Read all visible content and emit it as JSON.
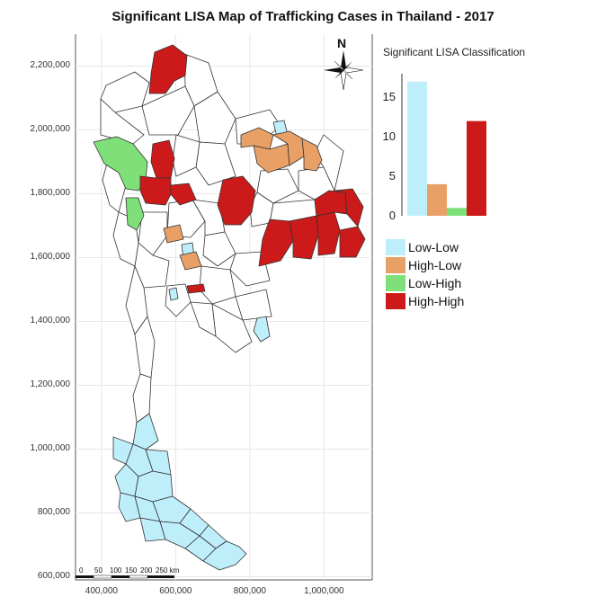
{
  "title": "Significant LISA Map of Trafficking Cases in Thailand - 2017",
  "north_label": "N",
  "scale_bar": {
    "labels": [
      "0",
      "50",
      "100",
      "150",
      "200",
      "250 km"
    ]
  },
  "colors": {
    "low_low": "#bfeefb",
    "high_low": "#e8a066",
    "low_high": "#7fe07a",
    "high_high": "#cc1a1a",
    "boundary": "#333333",
    "grid": "#e6e6e6"
  },
  "legend": [
    {
      "label": "Low-Low",
      "color": "#bfeefb"
    },
    {
      "label": "High-Low",
      "color": "#e8a066"
    },
    {
      "label": "Low-High",
      "color": "#7fe07a"
    },
    {
      "label": "High-High",
      "color": "#cc1a1a"
    }
  ],
  "chart_data": [
    {
      "type": "map",
      "title": "Significant LISA Map of Trafficking Cases in Thailand - 2017",
      "x_ticks": [
        "400,000",
        "600,000",
        "800,000",
        "1,000,000"
      ],
      "x_tick_values": [
        400000,
        600000,
        800000,
        1000000
      ],
      "y_ticks": [
        "600,000",
        "800,000",
        "1,000,000",
        "1,200,000",
        "1,400,000",
        "1,600,000",
        "1,800,000",
        "2,000,000",
        "2,200,000"
      ],
      "y_tick_values": [
        600000,
        800000,
        1000000,
        1200000,
        1400000,
        1600000,
        1800000,
        2000000,
        2200000
      ],
      "xlim": [
        330000,
        1130000
      ],
      "ylim": [
        590000,
        2300000
      ],
      "grid": true,
      "categories": [
        "Low-Low",
        "High-Low",
        "Low-High",
        "High-High"
      ]
    },
    {
      "type": "bar",
      "title": "Significant LISA Classification",
      "categories": [
        "Low-Low",
        "High-Low",
        "Low-High",
        "High-High"
      ],
      "values": [
        17,
        4,
        1,
        12
      ],
      "ylim": [
        0,
        18
      ],
      "y_ticks": [
        "0",
        "5",
        "10",
        "15"
      ],
      "y_tick_values": [
        0,
        5,
        10,
        15
      ]
    }
  ]
}
